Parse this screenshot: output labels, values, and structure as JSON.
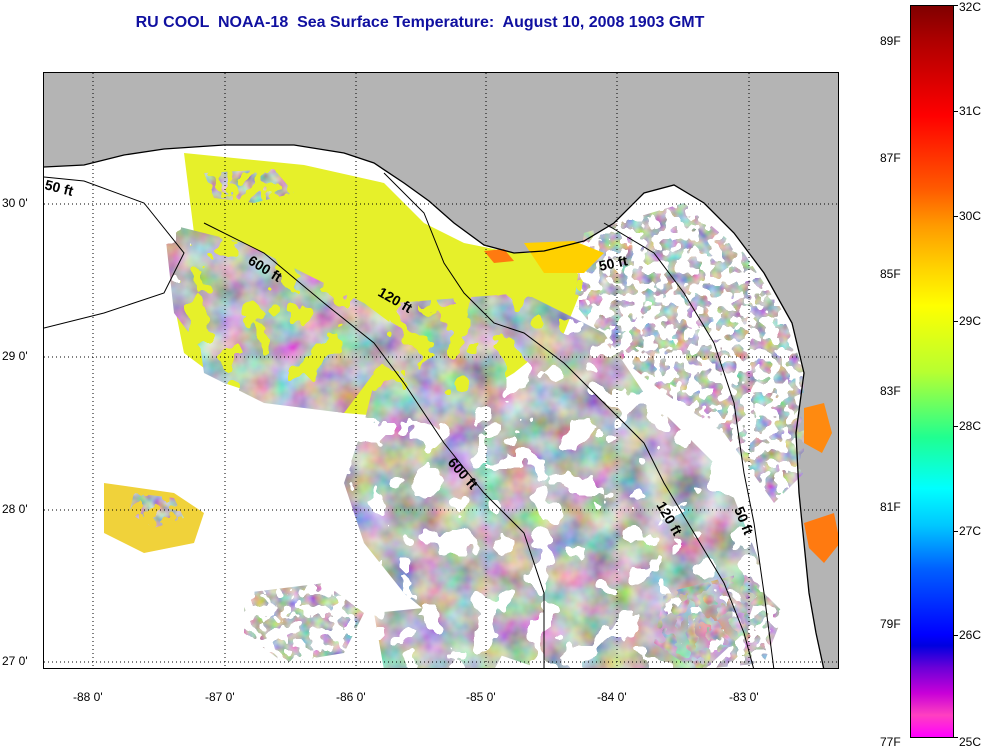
{
  "title": "RU COOL  NOAA-18  Sea Surface Temperature:  August 10, 2008 1903 GMT",
  "map": {
    "lat_labels": [
      "30 0'",
      "29 0'",
      "28 0'",
      "27 0'"
    ],
    "lon_labels": [
      "-88 0'",
      "-87 0'",
      "-86 0'",
      "-85 0'",
      "-84 0'",
      "-83 0'"
    ],
    "contours": [
      "50 ft",
      "600 ft",
      "120 ft",
      "50 ft",
      "600 ft",
      "120 ft",
      "50 ft"
    ],
    "colors": {
      "land": "#b4b4b4",
      "cloud": "#ffffff",
      "coast": "#000000"
    }
  },
  "colorbar": {
    "celsius": [
      "32C",
      "31C",
      "30C",
      "29C",
      "28C",
      "27C",
      "26C",
      "25C"
    ],
    "fahrenheit": [
      "89F",
      "87F",
      "85F",
      "83F",
      "81F",
      "79F",
      "77F"
    ]
  }
}
